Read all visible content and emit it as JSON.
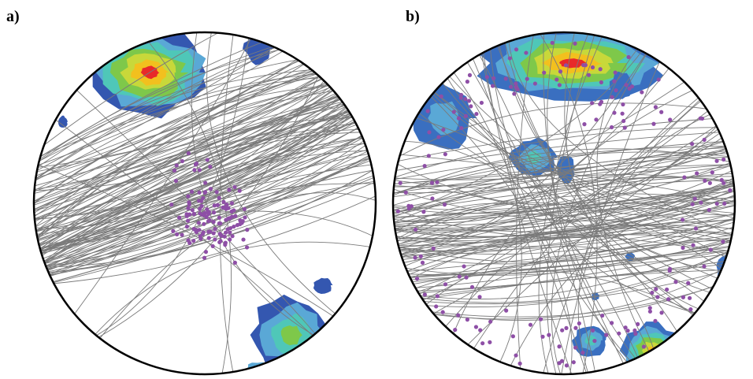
{
  "figure": {
    "panels": [
      {
        "label": "a)",
        "colors": {
          "planes": "#7a7a7a",
          "poles": "#8e4fa6",
          "outline": "#000000"
        },
        "contour_palette": [
          "#3457b0",
          "#5aa8d6",
          "#4fc7b8",
          "#7ec84a",
          "#c8d83a",
          "#f2c01e",
          "#e8292a"
        ]
      },
      {
        "label": "b)",
        "colors": {
          "planes": "#7a7a7a",
          "poles": "#8e4fa6",
          "outline": "#000000"
        },
        "contour_palette": [
          "#3a6fc0",
          "#5aa8d6",
          "#4fc7b8",
          "#7ec84a",
          "#c8d83a",
          "#f2c01e",
          "#e8292a"
        ]
      }
    ]
  }
}
